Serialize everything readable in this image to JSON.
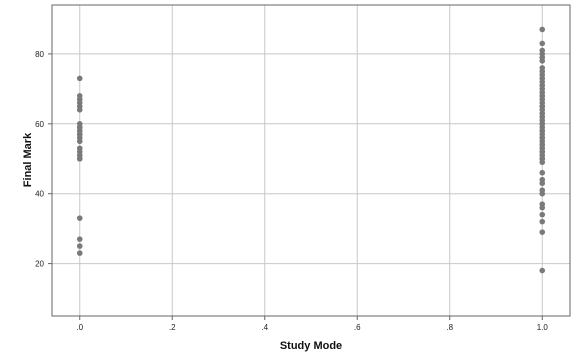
{
  "chart_data": {
    "type": "scatter",
    "title": "",
    "xlabel": "Study Mode",
    "ylabel": "Final Mark",
    "xlim": [
      -0.06,
      1.06
    ],
    "ylim": [
      5,
      94
    ],
    "x_ticks": [
      0,
      0.2,
      0.4,
      0.6,
      0.8,
      1.0
    ],
    "x_tick_labels": [
      ".0",
      ".2",
      ".4",
      ".6",
      ".8",
      "1.0"
    ],
    "y_ticks": [
      20,
      40,
      60,
      80
    ],
    "y_tick_labels": [
      "20",
      "40",
      "60",
      "80"
    ],
    "grid": true,
    "legend": "none",
    "colors": {
      "points": "#7a7a7a",
      "grid": "#c8c8c8",
      "frame": "#666666"
    },
    "series": [
      {
        "x": [
          0,
          0,
          0,
          0,
          0,
          0,
          0,
          0,
          0,
          0,
          0,
          0,
          0,
          0,
          0,
          0,
          0,
          0,
          0,
          0,
          0,
          0,
          0,
          0
        ],
        "y": [
          73,
          68,
          67,
          65,
          64,
          60,
          59,
          58,
          57,
          56,
          55,
          53,
          52,
          51,
          50,
          50,
          33,
          27,
          25,
          23,
          57,
          58,
          59,
          66
        ]
      },
      {
        "x": [
          1,
          1,
          1,
          1,
          1,
          1,
          1,
          1,
          1,
          1,
          1,
          1,
          1,
          1,
          1,
          1,
          1,
          1,
          1,
          1,
          1,
          1,
          1,
          1,
          1,
          1,
          1,
          1,
          1,
          1,
          1,
          1,
          1,
          1,
          1,
          1,
          1,
          1,
          1,
          1,
          1,
          1,
          1,
          1,
          1,
          1,
          1,
          1,
          1,
          1,
          1,
          1,
          1,
          1
        ],
        "y": [
          87,
          83,
          81,
          80,
          78,
          75,
          74,
          73,
          72,
          71,
          70,
          69,
          68,
          67,
          66,
          65,
          64,
          63,
          62,
          61,
          60,
          59,
          58,
          57,
          56,
          55,
          54,
          53,
          52,
          51,
          50,
          49,
          46,
          43,
          41,
          40,
          37,
          36,
          34,
          32,
          29,
          18,
          79,
          76,
          68,
          65,
          62,
          60,
          58,
          56,
          54,
          52,
          50,
          44
        ]
      }
    ]
  }
}
